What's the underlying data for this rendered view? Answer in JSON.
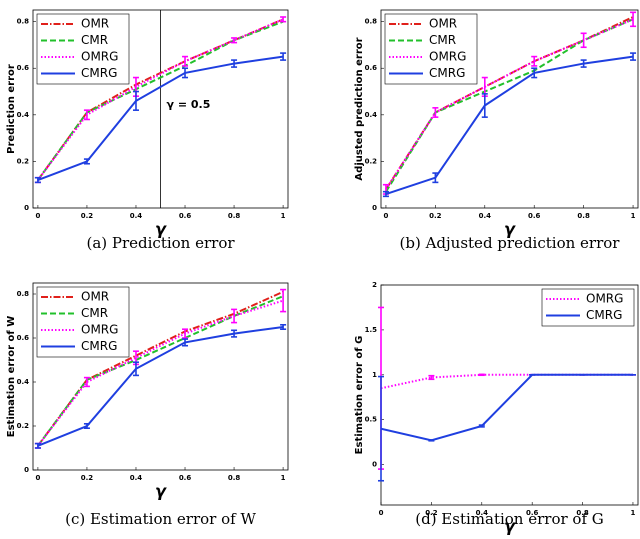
{
  "chart_data": [
    {
      "type": "line",
      "title": "(a)  Prediction error",
      "xlabel": "γ",
      "ylabel": "Prediction error",
      "x": [
        0,
        0.2,
        0.4,
        0.6,
        0.8,
        1
      ],
      "xlim": [
        -0.02,
        1.02
      ],
      "ylim": [
        0,
        0.85
      ],
      "xticks": [
        0,
        0.2,
        0.4,
        0.6,
        0.8,
        1
      ],
      "yticks": [
        0,
        0.2,
        0.4,
        0.6,
        0.8
      ],
      "legend": "upper left",
      "vline": 0.5,
      "annotation": "γ = 0.5",
      "series": [
        {
          "name": "OMR",
          "color": "#e0201b",
          "style": "dashdot",
          "values": [
            0.12,
            0.41,
            0.53,
            0.63,
            0.72,
            0.81
          ]
        },
        {
          "name": "CMR",
          "color": "#22c02b",
          "style": "dashed",
          "values": [
            0.12,
            0.41,
            0.51,
            0.61,
            0.72,
            0.8
          ]
        },
        {
          "name": "OMRG",
          "color": "#ff00ff",
          "style": "dotted",
          "values": [
            0.12,
            0.4,
            0.52,
            0.63,
            0.72,
            0.81
          ],
          "errors": [
            0.01,
            0.02,
            0.04,
            0.02,
            0.01,
            0.01
          ]
        },
        {
          "name": "CMRG",
          "color": "#1f3fe0",
          "style": "solid",
          "values": [
            0.12,
            0.2,
            0.46,
            0.58,
            0.62,
            0.65
          ],
          "errors": [
            0.01,
            0.01,
            0.04,
            0.02,
            0.015,
            0.015
          ]
        }
      ]
    },
    {
      "type": "line",
      "title": "(b)  Adjusted prediction error",
      "xlabel": "γ",
      "ylabel": "Adjusted prediction error",
      "x": [
        0,
        0.2,
        0.4,
        0.6,
        0.8,
        1
      ],
      "xlim": [
        -0.02,
        1.02
      ],
      "ylim": [
        0,
        0.85
      ],
      "xticks": [
        0,
        0.2,
        0.4,
        0.6,
        0.8,
        1
      ],
      "yticks": [
        0,
        0.2,
        0.4,
        0.6,
        0.8
      ],
      "legend": "upper left",
      "series": [
        {
          "name": "OMR",
          "color": "#e0201b",
          "style": "dashdot",
          "values": [
            0.08,
            0.41,
            0.52,
            0.63,
            0.72,
            0.82
          ]
        },
        {
          "name": "CMR",
          "color": "#22c02b",
          "style": "dashed",
          "values": [
            0.07,
            0.41,
            0.5,
            0.59,
            0.72,
            0.81
          ]
        },
        {
          "name": "OMRG",
          "color": "#ff00ff",
          "style": "dotted",
          "values": [
            0.08,
            0.41,
            0.52,
            0.63,
            0.72,
            0.81
          ],
          "errors": [
            0.02,
            0.02,
            0.04,
            0.02,
            0.03,
            0.03
          ]
        },
        {
          "name": "CMRG",
          "color": "#1f3fe0",
          "style": "solid",
          "values": [
            0.06,
            0.13,
            0.44,
            0.58,
            0.62,
            0.65
          ],
          "errors": [
            0.01,
            0.02,
            0.05,
            0.02,
            0.015,
            0.015
          ]
        }
      ]
    },
    {
      "type": "line",
      "title": "(c)  Estimation error of W",
      "xlabel": "γ",
      "ylabel": "Estimation error of W",
      "x": [
        0,
        0.2,
        0.4,
        0.6,
        0.8,
        1
      ],
      "xlim": [
        -0.02,
        1.02
      ],
      "ylim": [
        0,
        0.85
      ],
      "xticks": [
        0,
        0.2,
        0.4,
        0.6,
        0.8,
        1
      ],
      "yticks": [
        0,
        0.2,
        0.4,
        0.6,
        0.8
      ],
      "legend": "upper left",
      "series": [
        {
          "name": "OMR",
          "color": "#e0201b",
          "style": "dashdot",
          "values": [
            0.11,
            0.41,
            0.52,
            0.63,
            0.71,
            0.81
          ]
        },
        {
          "name": "CMR",
          "color": "#22c02b",
          "style": "dashed",
          "values": [
            0.11,
            0.41,
            0.5,
            0.6,
            0.7,
            0.79
          ]
        },
        {
          "name": "OMRG",
          "color": "#ff00ff",
          "style": "dotted",
          "values": [
            0.11,
            0.4,
            0.51,
            0.62,
            0.7,
            0.77
          ],
          "errors": [
            0.01,
            0.02,
            0.03,
            0.02,
            0.03,
            0.05
          ]
        },
        {
          "name": "CMRG",
          "color": "#1f3fe0",
          "style": "solid",
          "values": [
            0.11,
            0.2,
            0.46,
            0.58,
            0.62,
            0.65
          ],
          "errors": [
            0.01,
            0.01,
            0.03,
            0.015,
            0.015,
            0.01
          ]
        }
      ]
    },
    {
      "type": "line",
      "title": "(d)  Estimation error of G",
      "xlabel": "γ",
      "ylabel": "Estimation error of G",
      "x": [
        0,
        0.2,
        0.4,
        0.6,
        0.8,
        1
      ],
      "xlim": [
        0,
        1.02
      ],
      "ylim": [
        -0.45,
        2
      ],
      "xticks": [
        0,
        0.2,
        0.4,
        0.6,
        0.8,
        1
      ],
      "yticks": [
        0,
        0.5,
        1,
        1.5,
        2
      ],
      "legend": "upper right",
      "series": [
        {
          "name": "OMRG",
          "color": "#ff00ff",
          "style": "dotted",
          "values": [
            0.85,
            0.97,
            1,
            1,
            1,
            1
          ],
          "errors": [
            0.9,
            0.02,
            0.005,
            0,
            0,
            0
          ]
        },
        {
          "name": "CMRG",
          "color": "#1f3fe0",
          "style": "solid",
          "values": [
            0.4,
            0.27,
            0.43,
            1,
            1,
            1
          ],
          "errors": [
            0.58,
            0.005,
            0.01,
            0,
            0,
            0
          ]
        }
      ]
    }
  ]
}
